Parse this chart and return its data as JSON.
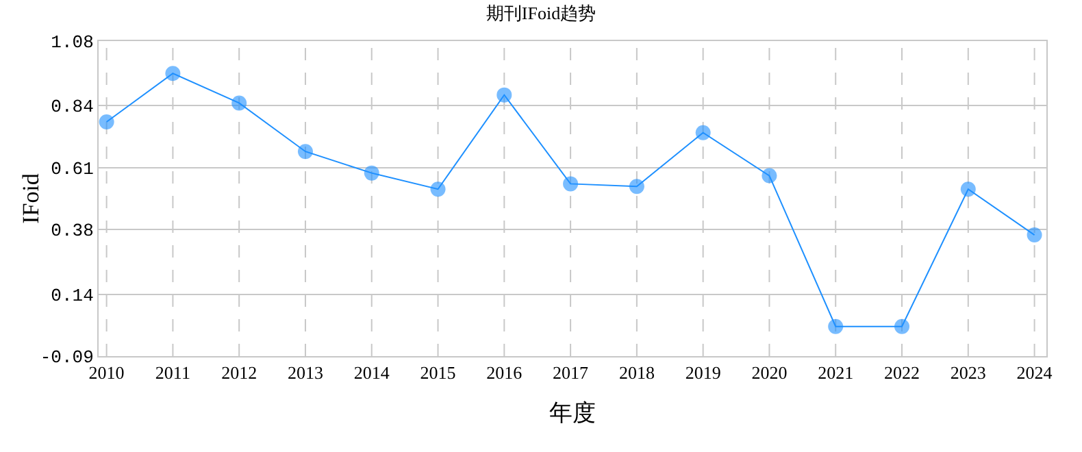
{
  "chart_data": {
    "type": "line",
    "title": "期刊IFoid趋势",
    "xlabel": "年度",
    "ylabel": "IFoid",
    "categories": [
      "2010",
      "2011",
      "2012",
      "2013",
      "2014",
      "2015",
      "2016",
      "2017",
      "2018",
      "2019",
      "2020",
      "2021",
      "2022",
      "2023",
      "2024"
    ],
    "series": [
      {
        "color": "#1e90ff",
        "values": [
          0.78,
          0.96,
          0.85,
          0.67,
          0.59,
          0.53,
          0.88,
          0.55,
          0.54,
          0.74,
          0.58,
          0.02,
          0.02,
          0.53,
          0.36
        ]
      }
    ],
    "ylim": [
      -0.09,
      1.08
    ],
    "yticks": [
      -0.09,
      0.14,
      0.38,
      0.61,
      0.84,
      1.08
    ],
    "grid": true,
    "marker": "circle",
    "line_style": "solid"
  }
}
